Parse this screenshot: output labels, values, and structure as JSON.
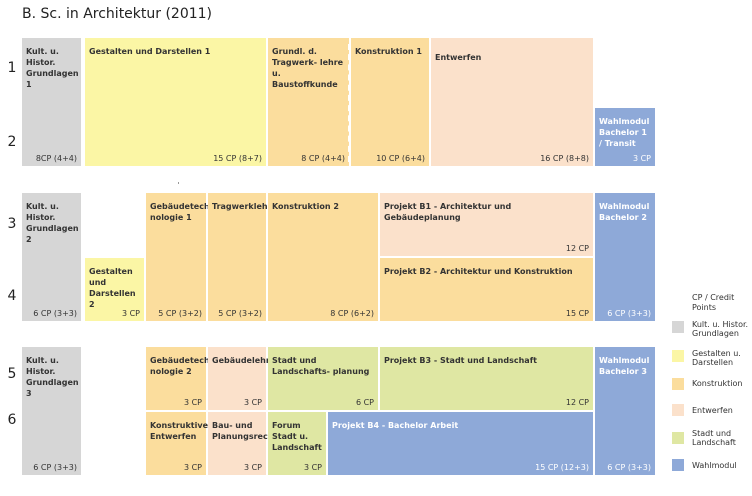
{
  "title": "B. Sc. in Architektur (2011)",
  "semesters": [
    "1",
    "2",
    "3",
    "4",
    "5",
    "6"
  ],
  "blocks": {
    "kult1": {
      "label": "Kult. u. Histor. Grundlagen 1",
      "cp": "8CP (4+4)",
      "color": "#d6d6d6"
    },
    "gestalten1": {
      "label": "Gestalten und Darstellen 1",
      "cp": "15 CP (8+7)",
      "color": "#fbf6a5"
    },
    "grundl": {
      "label": "Grundl. d. Tragwerk- lehre u. Baustoffkunde",
      "cp": "8 CP (4+4)",
      "color": "#fbdd9d"
    },
    "konstr1": {
      "label": "Konstruktion 1",
      "cp": "10 CP (6+4)",
      "color": "#fbdd9d"
    },
    "entwerfen": {
      "label": "Entwerfen",
      "cp": "16 CP (8+8)",
      "color": "#fbe1cb"
    },
    "wahl1": {
      "label": "Wahlmodul Bachelor 1 / Transit",
      "cp": "3 CP",
      "color": "#8ea9d8"
    },
    "kult2": {
      "label": "Kult. u. Histor. Grundlagen 2",
      "cp": "6 CP (3+3)",
      "color": "#d6d6d6"
    },
    "gestalten2": {
      "label": "Gestalten und Darstellen 2",
      "cp": "3 CP",
      "color": "#fbf6a5"
    },
    "gebtech1": {
      "label": "Gebäudetech- nologie 1",
      "cp": "5 CP (3+2)",
      "color": "#fbdd9d"
    },
    "tragwerk": {
      "label": "Tragwerklehre",
      "cp": "5 CP (3+2)",
      "color": "#fbdd9d"
    },
    "konstr2": {
      "label": "Konstruktion 2",
      "cp": "8 CP (6+2)",
      "color": "#fbdd9d"
    },
    "projb1": {
      "label": "Projekt B1 - Architektur und Gebäudeplanung",
      "cp": "12 CP",
      "color": "#fbe1cb"
    },
    "projb2": {
      "label": "Projekt B2 - Architektur und Konstruktion",
      "cp": "15 CP",
      "color": "#fbdd9d"
    },
    "wahl2": {
      "label": "Wahlmodul Bachelor 2",
      "cp": "6 CP (3+3)",
      "color": "#8ea9d8"
    },
    "kult3": {
      "label": "Kult. u. Histor. Grundlagen 3",
      "cp": "6 CP (3+3)",
      "color": "#d6d6d6"
    },
    "gebtech2": {
      "label": "Gebäudetech- nologie 2",
      "cp": "3 CP",
      "color": "#fbdd9d"
    },
    "gebaeudelehre": {
      "label": "Gebäudelehre",
      "cp": "3 CP",
      "color": "#fbe1cb"
    },
    "stadtplan": {
      "label": "Stadt und Landschafts- planung",
      "cp": "6 CP",
      "color": "#dfe7a3"
    },
    "projb3": {
      "label": "Projekt B3 - Stadt und Landschaft",
      "cp": "12 CP",
      "color": "#dfe7a3"
    },
    "wahl3": {
      "label": "Wahlmodul Bachelor 3",
      "cp": "6 CP (3+3)",
      "color": "#8ea9d8"
    },
    "konstrentw": {
      "label": "Konstruktives Entwerfen",
      "cp": "3 CP",
      "color": "#fbdd9d"
    },
    "baurecht": {
      "label": "Bau- und Planungsrecht",
      "cp": "3 CP",
      "color": "#fbe1cb"
    },
    "forum": {
      "label": "Forum Stadt u. Landschaft",
      "cp": "3 CP",
      "color": "#dfe7a3"
    },
    "projb4": {
      "label": "Projekt B4 - Bachelor Arbeit",
      "cp": "15 CP (12+3)",
      "color": "#8ea9d8"
    }
  },
  "legend": {
    "title": "CP / Credit Points",
    "items": [
      {
        "label": "Kult. u. Histor. Grundlagen",
        "color": "#d6d6d6"
      },
      {
        "label": "Gestalten u. Darstellen",
        "color": "#fbf6a5"
      },
      {
        "label": "Konstruktion",
        "color": "#fbdd9d"
      },
      {
        "label": "Entwerfen",
        "color": "#fbe1cb"
      },
      {
        "label": "Stadt und Landschaft",
        "color": "#dfe7a3"
      },
      {
        "label": "Wahlmodul",
        "color": "#8ea9d8"
      }
    ]
  }
}
